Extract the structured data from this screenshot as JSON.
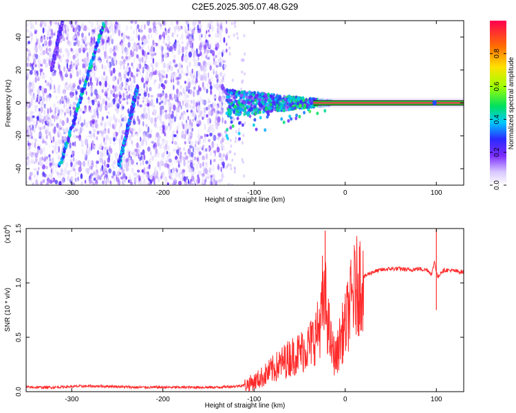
{
  "title": "C2E5.2025.305.07.48.G29",
  "chart_data": [
    {
      "type": "heatmap",
      "name": "spectrogram",
      "xlabel": "Height of straight line (km)",
      "ylabel": "Frequency (Hz)",
      "xlim": [
        -350,
        130
      ],
      "ylim": [
        -50,
        50
      ],
      "xticks": [
        -300,
        -200,
        -100,
        0,
        100
      ],
      "xtick_labels": [
        "-300",
        "-200",
        "-100",
        "0",
        "100"
      ],
      "yticks": [
        -40,
        -20,
        0,
        20,
        40
      ],
      "ytick_labels": [
        "-40",
        "-20",
        "0",
        "20",
        "40"
      ],
      "noise_region_x": [
        -350,
        -130
      ],
      "dominant_tone_hz": 0,
      "tone_onset_km": -130,
      "stable_tone_from_km": -30,
      "stripes": [
        {
          "x": [
            -313,
            -265
          ],
          "y": [
            -38,
            48
          ],
          "amplitude": 0.35
        },
        {
          "x": [
            -248,
            -228
          ],
          "y": [
            -38,
            10
          ],
          "amplitude": 0.3
        },
        {
          "x": [
            -322,
            -310
          ],
          "y": [
            20,
            50
          ],
          "amplitude": 0.2
        }
      ],
      "colorbar": {
        "label": "Normalized spectral amplitude",
        "range": [
          0,
          1
        ],
        "ticks": [
          0.0,
          0.2,
          0.4,
          0.6,
          0.8
        ],
        "tick_labels": [
          "0.0",
          "0.2",
          "0.4",
          "0.6",
          "0.8"
        ]
      }
    },
    {
      "type": "line",
      "name": "snr",
      "xlabel": "Height of straight line (km)",
      "ylabel": "SNR (10 * v/v)",
      "scale_label": "(x10",
      "scale_exponent": "4",
      "xlim": [
        -350,
        130
      ],
      "ylim": [
        0,
        1.5
      ],
      "xticks": [
        -300,
        -200,
        -100,
        0,
        100
      ],
      "xtick_labels": [
        "-300",
        "-200",
        "-100",
        "0",
        "100"
      ],
      "yticks": [
        0.0,
        0.5,
        1.0,
        1.5
      ],
      "ytick_labels": [
        "0.0",
        "0.5",
        "1.0",
        "1.5"
      ],
      "series": [
        {
          "name": "SNR",
          "color": "#ff2a2a",
          "x": [
            -350,
            -320,
            -290,
            -260,
            -230,
            -200,
            -170,
            -140,
            -120,
            -110,
            -100,
            -90,
            -80,
            -70,
            -60,
            -50,
            -40,
            -35,
            -30,
            -25,
            -22,
            -20,
            -15,
            -10,
            -5,
            0,
            5,
            10,
            15,
            20,
            25,
            30,
            40,
            50,
            60,
            70,
            80,
            90,
            95,
            98,
            100,
            102,
            105,
            110,
            120,
            130
          ],
          "y": [
            0.04,
            0.04,
            0.05,
            0.05,
            0.04,
            0.04,
            0.04,
            0.04,
            0.05,
            0.06,
            0.09,
            0.14,
            0.2,
            0.26,
            0.32,
            0.36,
            0.42,
            0.48,
            0.56,
            0.72,
            0.85,
            0.7,
            0.4,
            0.3,
            0.5,
            0.6,
            0.78,
            0.92,
            1.0,
            1.05,
            1.08,
            1.1,
            1.12,
            1.13,
            1.13,
            1.12,
            1.13,
            1.12,
            1.08,
            1.2,
            1.1,
            1.05,
            1.1,
            1.12,
            1.11,
            1.1
          ],
          "spikes": [
            {
              "x": -22,
              "y": 1.48
            },
            {
              "x": -25,
              "y": 1.25
            },
            {
              "x": 100,
              "y": 1.52
            },
            {
              "x": 100,
              "y": 0.75
            }
          ]
        }
      ]
    }
  ]
}
